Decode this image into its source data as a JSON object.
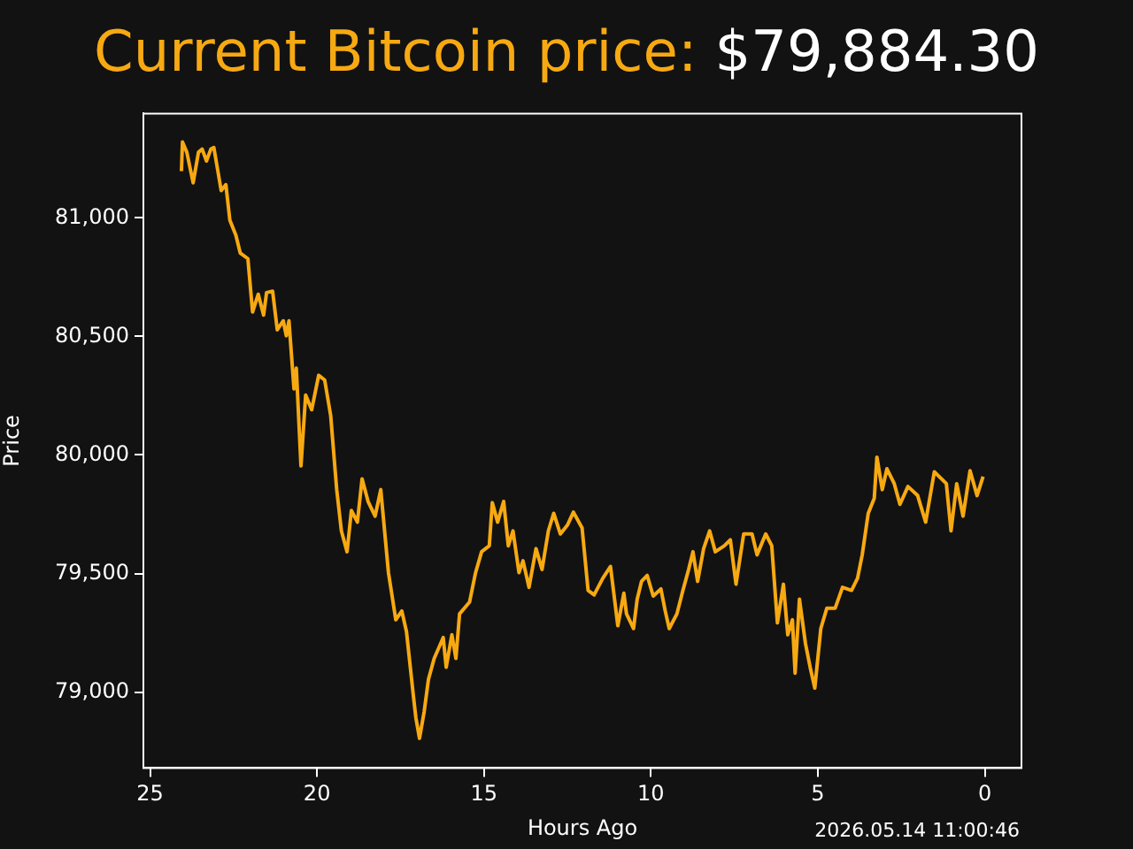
{
  "chart_data": {
    "type": "line",
    "title": "Current Bitcoin price:",
    "subtitle": "$79,884.30",
    "xlabel": "Hours Ago",
    "ylabel": "Price",
    "annotations": [
      "2026.05.14 11:00:46"
    ],
    "xlim": [
      25.2,
      -1.1
    ],
    "xticks": [
      25,
      20,
      15,
      10,
      5,
      0
    ],
    "ylim": [
      78680,
      81440
    ],
    "yticks": [
      {
        "value": 79000,
        "label": "79,000"
      },
      {
        "value": 79500,
        "label": "79,500"
      },
      {
        "value": 80000,
        "label": "80,000"
      },
      {
        "value": 80500,
        "label": "80,500"
      },
      {
        "value": 81000,
        "label": "81,000"
      }
    ],
    "grid": false,
    "series": [
      {
        "color": "#f7a912",
        "x": [
          24.06,
          24.03,
          23.9,
          23.71,
          23.55,
          23.44,
          23.31,
          23.18,
          23.09,
          22.87,
          22.73,
          22.61,
          22.43,
          22.3,
          22.07,
          21.93,
          21.76,
          21.6,
          21.51,
          21.33,
          21.19,
          21.01,
          20.92,
          20.84,
          20.69,
          20.62,
          20.48,
          20.34,
          20.16,
          19.95,
          19.77,
          19.59,
          19.41,
          19.27,
          19.1,
          18.97,
          18.79,
          18.65,
          18.47,
          18.26,
          18.09,
          17.86,
          17.64,
          17.46,
          17.32,
          17.11,
          17.04,
          16.93,
          16.79,
          16.66,
          16.49,
          16.22,
          16.13,
          15.96,
          15.84,
          15.73,
          15.43,
          15.25,
          15.07,
          14.84,
          14.75,
          14.59,
          14.41,
          14.27,
          14.13,
          13.95,
          13.83,
          13.65,
          13.44,
          13.26,
          13.07,
          12.91,
          12.71,
          12.5,
          12.32,
          12.06,
          11.88,
          11.7,
          11.44,
          11.21,
          10.99,
          10.81,
          10.73,
          10.52,
          10.41,
          10.28,
          10.11,
          9.93,
          9.7,
          9.57,
          9.45,
          9.22,
          9.04,
          8.87,
          8.74,
          8.6,
          8.42,
          8.24,
          8.07,
          7.8,
          7.62,
          7.45,
          7.22,
          6.97,
          6.82,
          6.56,
          6.38,
          6.21,
          6.03,
          5.9,
          5.76,
          5.68,
          5.55,
          5.37,
          5.23,
          5.09,
          4.91,
          4.73,
          4.48,
          4.26,
          3.99,
          3.81,
          3.67,
          3.49,
          3.31,
          3.23,
          3.07,
          2.93,
          2.71,
          2.54,
          2.3,
          2.01,
          1.77,
          1.51,
          1.15,
          1.01,
          0.84,
          0.65,
          0.44,
          0.23,
          0.05
        ],
        "values": [
          81197,
          81320,
          81277,
          81148,
          81277,
          81290,
          81240,
          81290,
          81297,
          81115,
          81140,
          80990,
          80927,
          80852,
          80828,
          80603,
          80678,
          80590,
          80685,
          80691,
          80528,
          80566,
          80503,
          80566,
          80279,
          80366,
          79954,
          80253,
          80191,
          80336,
          80316,
          80166,
          79854,
          79680,
          79592,
          79766,
          79717,
          79899,
          79804,
          79742,
          79854,
          79504,
          79305,
          79342,
          79255,
          78980,
          78893,
          78805,
          78918,
          79055,
          79142,
          79230,
          79105,
          79242,
          79142,
          79330,
          79380,
          79504,
          79592,
          79617,
          79799,
          79717,
          79804,
          79617,
          79680,
          79504,
          79554,
          79442,
          79605,
          79517,
          79680,
          79754,
          79667,
          79704,
          79759,
          79692,
          79429,
          79410,
          79480,
          79530,
          79280,
          79417,
          79330,
          79268,
          79392,
          79467,
          79492,
          79405,
          79435,
          79342,
          79268,
          79330,
          79429,
          79517,
          79592,
          79467,
          79605,
          79680,
          79592,
          79617,
          79642,
          79455,
          79667,
          79667,
          79579,
          79667,
          79617,
          79292,
          79455,
          79242,
          79305,
          79080,
          79392,
          79205,
          79105,
          79017,
          79268,
          79354,
          79354,
          79442,
          79429,
          79480,
          79579,
          79754,
          79817,
          79991,
          79854,
          79942,
          79879,
          79792,
          79867,
          79829,
          79717,
          79929,
          79879,
          79680,
          79879,
          79742,
          79934,
          79829,
          79909
        ]
      }
    ]
  }
}
